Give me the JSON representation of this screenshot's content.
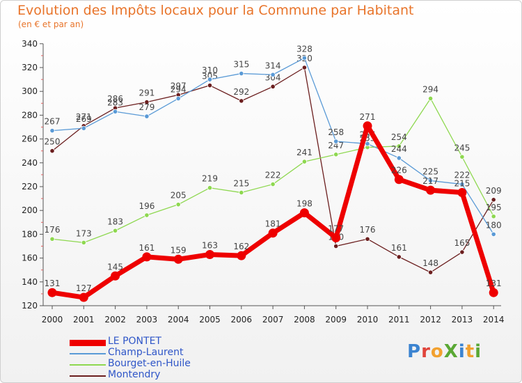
{
  "chart_data": {
    "type": "line",
    "title": "Evolution des Impôts locaux pour la Commune par Habitant",
    "subtitle": "(en € et par an)",
    "xlabel": "",
    "ylabel": "",
    "x": [
      "2000",
      "2001",
      "2002",
      "2003",
      "2004",
      "2005",
      "2006",
      "2007",
      "2008",
      "2009",
      "2010",
      "2011",
      "2012",
      "2013",
      "2014"
    ],
    "yticks": [
      120,
      140,
      160,
      180,
      200,
      220,
      240,
      260,
      280,
      300,
      320,
      340
    ],
    "ylim": [
      120,
      340
    ],
    "series": [
      {
        "name": "Montendry",
        "color": "#6b1e1e",
        "values": [
          250,
          271,
          286,
          291,
          297,
          305,
          292,
          304,
          320,
          170,
          176,
          161,
          148,
          165,
          209
        ]
      },
      {
        "name": "Bourget-en-Huile",
        "color": "#8ed850",
        "values": [
          176,
          173,
          183,
          196,
          205,
          219,
          215,
          222,
          241,
          247,
          253,
          254,
          294,
          245,
          195
        ]
      },
      {
        "name": "Champ-Laurent",
        "color": "#5a9ad6",
        "values": [
          267,
          269,
          283,
          279,
          294,
          310,
          315,
          314,
          328,
          258,
          256,
          244,
          225,
          222,
          180
        ]
      },
      {
        "name": "LE PONTET",
        "color": "#ee0000",
        "values": [
          131,
          127,
          145,
          161,
          159,
          163,
          162,
          181,
          198,
          177,
          271,
          226,
          217,
          215,
          131
        ]
      }
    ],
    "legend": [
      "LE PONTET",
      "Champ-Laurent",
      "Bourget-en-Huile",
      "Montendry"
    ],
    "legend_position": "bottom-left",
    "grid": false
  },
  "logo": {
    "text": "ProXiti"
  }
}
